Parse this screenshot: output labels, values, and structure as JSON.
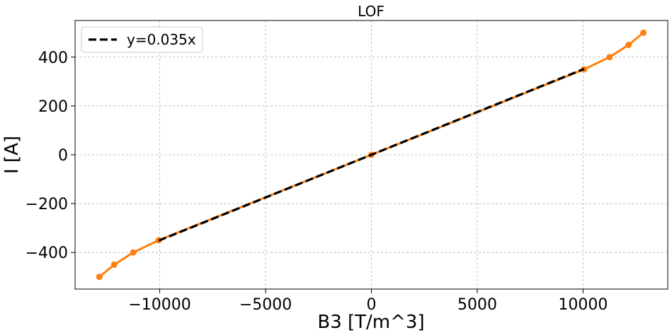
{
  "chart_data": {
    "type": "line",
    "title": "LOF",
    "xlabel": "B3 [T/m^3]",
    "ylabel": "I [A]",
    "xlim": [
      -14000,
      14000
    ],
    "ylim": [
      -550,
      550
    ],
    "xticks": [
      -10000,
      -5000,
      0,
      5000,
      10000
    ],
    "xtick_labels": [
      "−10000",
      "−5000",
      "0",
      "5000",
      "10000"
    ],
    "yticks": [
      -400,
      -200,
      0,
      200,
      400
    ],
    "ytick_labels": [
      "−400",
      "−200",
      "0",
      "200",
      "400"
    ],
    "grid": true,
    "legend_position": "top-left",
    "series": [
      {
        "color": "#ff7f0e",
        "style": "solid-with-markers",
        "x": [
          -12850,
          -12150,
          -11250,
          -10050,
          0,
          10050,
          11250,
          12150,
          12850
        ],
        "y": [
          -500,
          -450,
          -400,
          -350,
          0,
          350,
          400,
          450,
          500
        ]
      },
      {
        "name": "y=0.035x",
        "color": "#000000",
        "style": "dashed",
        "x": [
          -10050,
          10050
        ],
        "y": [
          -351.75,
          351.75
        ]
      }
    ]
  }
}
